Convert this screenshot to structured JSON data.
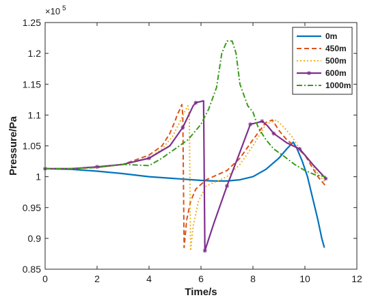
{
  "chart_data": {
    "type": "line",
    "xlabel": "Time/s",
    "ylabel": "Pressure/Pa",
    "y_multiplier": "×10",
    "y_exponent": "5",
    "xlim": [
      0,
      12
    ],
    "ylim": [
      0.85,
      1.25
    ],
    "x_ticks": [
      "0",
      "2",
      "4",
      "6",
      "8",
      "10",
      "12"
    ],
    "y_ticks": [
      "0.85",
      "0.9",
      "0.95",
      "1",
      "1.05",
      "1.1",
      "1.15",
      "1.2",
      "1.25"
    ],
    "legend_position": "top-right",
    "grid": false,
    "series": [
      {
        "name": "0m",
        "color": "#0072BD",
        "style": "solid",
        "x": [
          0,
          1,
          2,
          3,
          4,
          5,
          6,
          6.5,
          7,
          7.5,
          8,
          8.5,
          9,
          9.3,
          9.55,
          9.7,
          9.9,
          10.1,
          10.3,
          10.5,
          10.65,
          10.75
        ],
        "y": [
          1.013,
          1.012,
          1.009,
          1.005,
          1.0,
          0.997,
          0.994,
          0.993,
          0.993,
          0.995,
          1.0,
          1.012,
          1.03,
          1.045,
          1.056,
          1.045,
          1.025,
          1.0,
          0.965,
          0.93,
          0.9,
          0.885
        ]
      },
      {
        "name": "450m",
        "color": "#D95319",
        "style": "dashed",
        "x": [
          0,
          1,
          2,
          3,
          4,
          4.5,
          4.8,
          5.0,
          5.1,
          5.2,
          5.26,
          5.3,
          5.35,
          5.45,
          5.6,
          5.8,
          6.2,
          7.0,
          7.5,
          8.0,
          8.5,
          8.75,
          9.0,
          9.3,
          9.6,
          10.0,
          10.5,
          10.8
        ],
        "y": [
          1.013,
          1.013,
          1.015,
          1.02,
          1.035,
          1.05,
          1.07,
          1.09,
          1.102,
          1.11,
          1.117,
          1.1,
          0.885,
          0.93,
          0.96,
          0.98,
          0.995,
          1.01,
          1.03,
          1.06,
          1.088,
          1.092,
          1.075,
          1.06,
          1.05,
          1.035,
          1.0,
          0.985
        ]
      },
      {
        "name": "500m",
        "color": "#EDB120",
        "style": "dotted",
        "x": [
          0,
          1,
          2,
          3,
          4,
          4.5,
          4.9,
          5.2,
          5.4,
          5.5,
          5.55,
          5.6,
          5.7,
          5.9,
          6.2,
          7.0,
          7.5,
          8.0,
          8.5,
          8.9,
          9.2,
          9.5,
          9.8,
          10.1,
          10.5,
          10.8
        ],
        "y": [
          1.013,
          1.013,
          1.015,
          1.02,
          1.03,
          1.045,
          1.065,
          1.09,
          1.108,
          1.115,
          1.1,
          0.88,
          0.92,
          0.96,
          0.985,
          1.0,
          1.02,
          1.05,
          1.085,
          1.092,
          1.08,
          1.065,
          1.045,
          1.03,
          1.005,
          0.99
        ]
      },
      {
        "name": "600m",
        "color": "#7E2F8E",
        "style": "solid-star",
        "x": [
          0,
          1,
          2,
          3,
          4,
          4.8,
          5.3,
          5.7,
          5.8,
          6.1,
          6.15,
          6.5,
          7.0,
          7.5,
          7.9,
          8.2,
          8.35,
          8.55,
          8.8,
          9.3,
          9.8,
          10.3,
          10.8
        ],
        "y": [
          1.013,
          1.013,
          1.016,
          1.02,
          1.03,
          1.05,
          1.08,
          1.115,
          1.12,
          1.123,
          0.88,
          0.925,
          0.985,
          1.04,
          1.085,
          1.088,
          1.09,
          1.083,
          1.07,
          1.055,
          1.045,
          1.02,
          0.997
        ]
      },
      {
        "name": "1000m",
        "color": "#3A9A1A",
        "style": "dash-dot",
        "x": [
          0,
          1,
          2,
          3,
          4,
          4.5,
          5.0,
          5.5,
          6.0,
          6.3,
          6.6,
          6.8,
          7.0,
          7.2,
          7.35,
          7.5,
          7.8,
          8.0,
          8.2,
          8.5,
          8.8,
          9.2,
          9.6,
          10.0,
          10.4,
          10.8
        ],
        "y": [
          1.013,
          1.013,
          1.015,
          1.02,
          1.018,
          1.03,
          1.045,
          1.06,
          1.085,
          1.11,
          1.145,
          1.2,
          1.22,
          1.22,
          1.2,
          1.15,
          1.115,
          1.105,
          1.08,
          1.06,
          1.045,
          1.033,
          1.02,
          1.01,
          1.003,
          1.0
        ]
      }
    ]
  }
}
